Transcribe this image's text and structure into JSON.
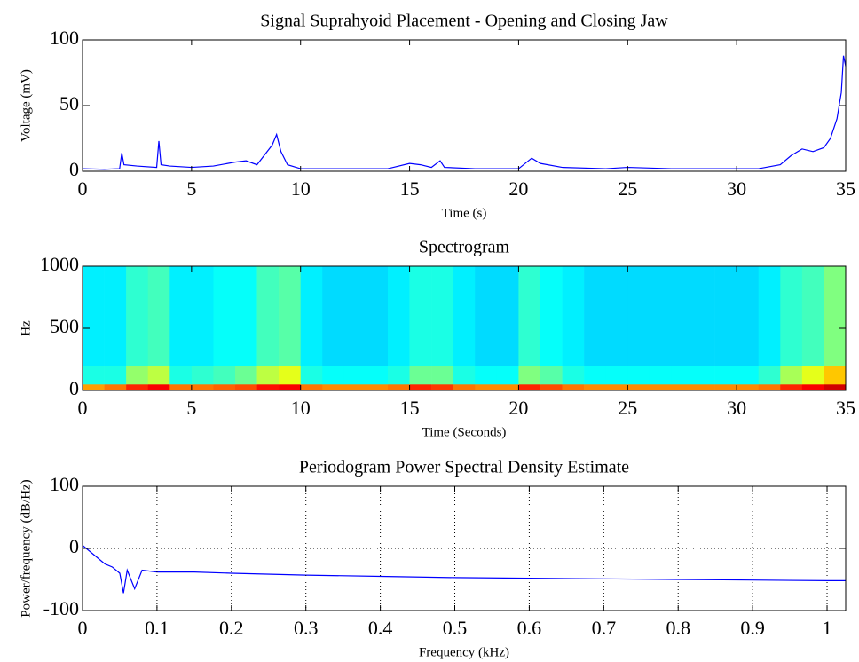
{
  "chart_data": [
    {
      "type": "line",
      "title": "Signal Suprahyoid Placement - Opening and Closing Jaw",
      "x_label": "Time (s)",
      "y_label": "Voltage (mV)",
      "x": [
        0,
        1,
        1.7,
        1.8,
        1.9,
        2.5,
        3.4,
        3.5,
        3.6,
        4,
        5,
        6,
        7,
        7.5,
        8,
        8.7,
        8.9,
        9.1,
        9.4,
        10,
        12,
        14,
        15,
        15.5,
        16,
        16.4,
        16.6,
        18,
        20,
        20.6,
        21,
        22,
        24,
        25,
        27,
        30,
        31,
        32,
        32.5,
        33,
        33.5,
        34,
        34.3,
        34.6,
        34.8,
        34.9,
        35
      ],
      "series": [
        {
          "color": "#0000ff",
          "values": [
            2,
            1.5,
            2,
            14,
            5,
            4,
            3,
            23,
            5,
            4,
            3,
            4,
            7,
            8,
            5,
            20,
            28,
            15,
            5,
            2,
            2,
            2,
            6,
            5,
            3,
            8,
            3,
            2,
            2,
            10,
            6,
            3,
            2,
            3,
            2,
            2,
            2,
            5,
            12,
            17,
            15,
            18,
            25,
            40,
            60,
            88,
            80
          ]
        }
      ],
      "xlim": [
        0,
        35
      ],
      "xticks": [
        0,
        5,
        10,
        15,
        20,
        25,
        30,
        35
      ],
      "ylim": [
        0,
        100
      ],
      "yticks": [
        0,
        50,
        100
      ],
      "grid": false
    },
    {
      "type": "heatmap",
      "title": "Spectrogram",
      "x_label": "Time (Seconds)",
      "y_label": "Hz",
      "xbins": [
        0,
        1,
        2,
        3,
        4,
        5,
        6,
        7,
        8,
        9,
        10,
        11,
        12,
        13,
        14,
        15,
        16,
        17,
        18,
        19,
        20,
        21,
        22,
        23,
        24,
        25,
        26,
        27,
        28,
        29,
        30,
        31,
        32,
        33,
        34,
        35
      ],
      "ybins": [
        0,
        50,
        200,
        1000
      ],
      "values": [
        [
          -4,
          -2,
          2,
          4,
          -2,
          -2,
          -1,
          0,
          3,
          4,
          -2,
          -3,
          -3,
          -3,
          -2,
          2,
          1,
          -2,
          -3,
          -3,
          2,
          0,
          -2,
          -3,
          -3,
          -3,
          -3,
          -3,
          -3,
          -3,
          -3,
          -2,
          2,
          4,
          6
        ],
        [
          -20,
          -20,
          -14,
          -12,
          -20,
          -19,
          -18,
          -16,
          -12,
          -10,
          -20,
          -21,
          -21,
          -21,
          -20,
          -16,
          -16,
          -20,
          -21,
          -21,
          -15,
          -17,
          -20,
          -21,
          -21,
          -21,
          -21,
          -21,
          -21,
          -21,
          -21,
          -19,
          -13,
          -10,
          -6
        ],
        [
          -22,
          -22,
          -19,
          -18,
          -22,
          -22,
          -21,
          -21,
          -18,
          -17,
          -22,
          -23,
          -23,
          -23,
          -22,
          -20,
          -20,
          -22,
          -23,
          -23,
          -19,
          -21,
          -22,
          -23,
          -23,
          -23,
          -23,
          -23,
          -23,
          -23,
          -23,
          -22,
          -19,
          -18,
          -15
        ]
      ],
      "clim": [
        -40,
        10
      ],
      "colormap": "jet",
      "xlim": [
        0,
        35
      ],
      "xticks": [
        0,
        5,
        10,
        15,
        20,
        25,
        30,
        35
      ],
      "ylim": [
        0,
        1000
      ],
      "yticks": [
        0,
        500,
        1000
      ],
      "grid": false
    },
    {
      "type": "line",
      "title": "Periodogram Power Spectral Density Estimate",
      "x_label": "Frequency (kHz)",
      "y_label": "Power/frequency (dB/Hz)",
      "x": [
        0,
        0.01,
        0.02,
        0.03,
        0.04,
        0.05,
        0.055,
        0.06,
        0.07,
        0.08,
        0.1,
        0.15,
        0.2,
        0.3,
        0.4,
        0.5,
        0.6,
        0.7,
        0.8,
        0.9,
        1.0,
        1.025
      ],
      "series": [
        {
          "color": "#0000ff",
          "values": [
            5,
            -5,
            -15,
            -25,
            -30,
            -40,
            -72,
            -35,
            -65,
            -35,
            -38,
            -38,
            -40,
            -43,
            -45,
            -47,
            -48,
            -49,
            -50,
            -51,
            -52,
            -52
          ]
        }
      ],
      "xlim": [
        0,
        1.025
      ],
      "xticks": [
        0,
        0.1,
        0.2,
        0.3,
        0.4,
        0.5,
        0.6,
        0.7,
        0.8,
        0.9,
        1
      ],
      "ylim": [
        -100,
        100
      ],
      "yticks": [
        -100,
        0,
        100
      ],
      "grid": true
    }
  ]
}
